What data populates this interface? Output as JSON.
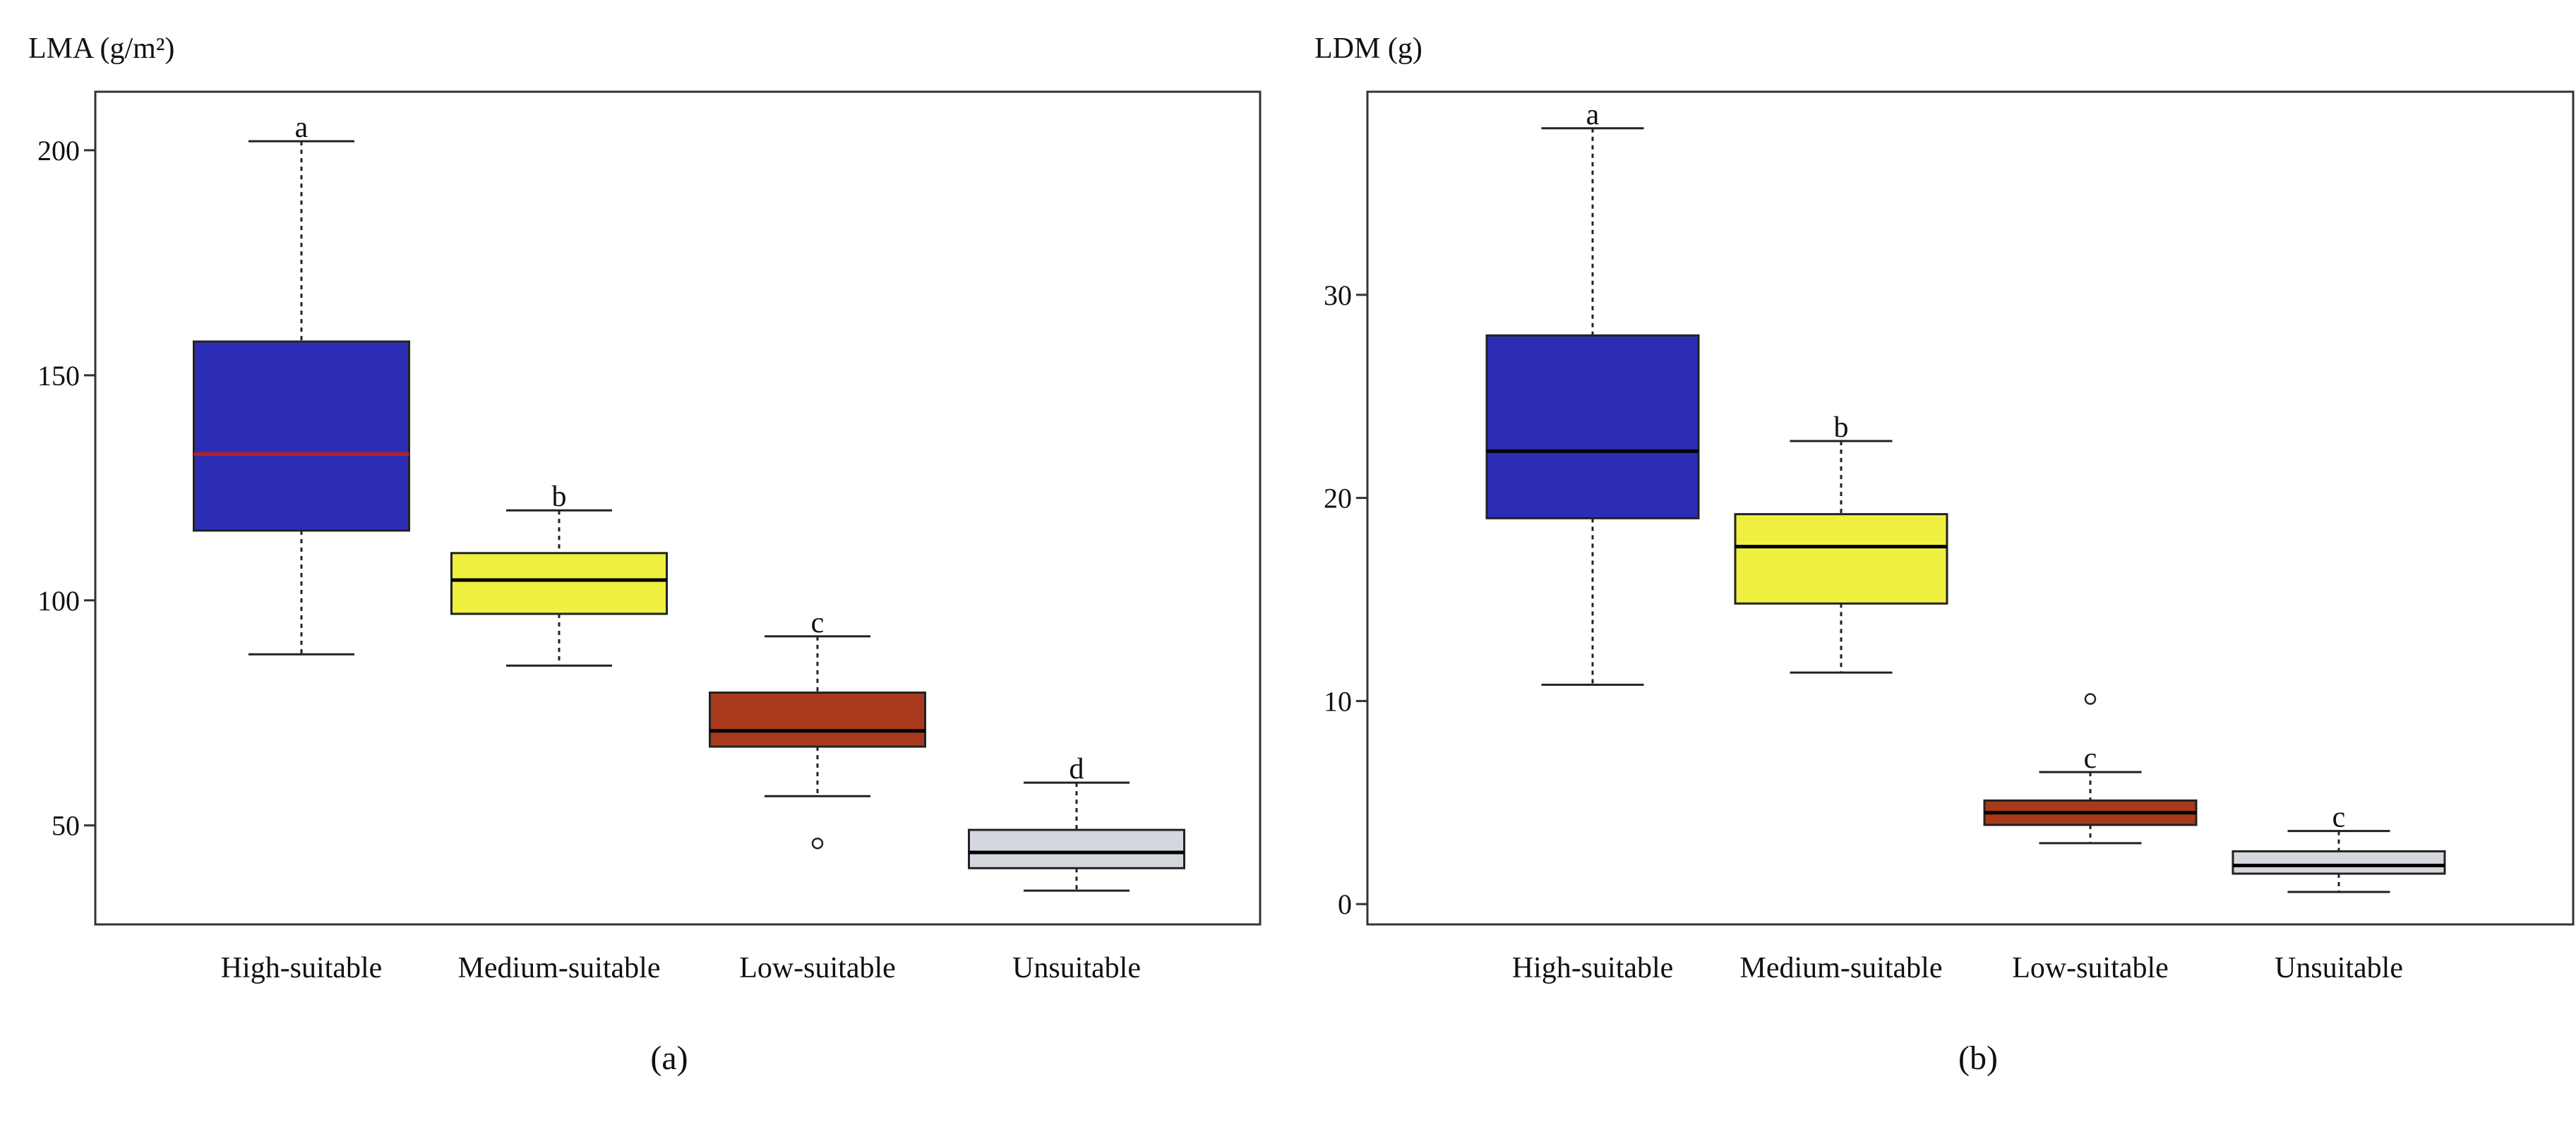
{
  "chart_data": [
    {
      "type": "box",
      "panel_label": "(a)",
      "ylabel": "LMA (g/m²)",
      "ylim": [
        28,
        213
      ],
      "yticks": [
        50,
        100,
        150,
        200
      ],
      "categories": [
        "High-suitable",
        "Medium-suitable",
        "Low-suitable",
        "Unsuitable"
      ],
      "boxes": [
        {
          "name": "High-suitable",
          "whisker_low": 88,
          "q1": 115.5,
          "median": 132.5,
          "q3": 157.5,
          "whisker_high": 202,
          "outliers": [],
          "letter": "a",
          "fill": "#2b2eb4",
          "median_color": "#b22222"
        },
        {
          "name": "Medium-suitable",
          "whisker_low": 85.5,
          "q1": 97,
          "median": 104.5,
          "q3": 110.5,
          "whisker_high": 120,
          "outliers": [],
          "letter": "b",
          "fill": "#f0f040",
          "median_color": "#000000"
        },
        {
          "name": "Low-suitable",
          "whisker_low": 56.5,
          "q1": 67.5,
          "median": 71,
          "q3": 79.5,
          "whisker_high": 92,
          "outliers": [
            46
          ],
          "letter": "c",
          "fill": "#a8391c",
          "median_color": "#000000"
        },
        {
          "name": "Unsuitable",
          "whisker_low": 35.5,
          "q1": 40.5,
          "median": 44,
          "q3": 49,
          "whisker_high": 59.5,
          "outliers": [],
          "letter": "d",
          "fill": "#d4d7de",
          "median_color": "#000000"
        }
      ]
    },
    {
      "type": "box",
      "panel_label": "(b)",
      "ylabel": "LDM (g)",
      "ylim": [
        -1,
        40
      ],
      "yticks": [
        0,
        10,
        20,
        30
      ],
      "categories": [
        "High-suitable",
        "Medium-suitable",
        "Low-suitable",
        "Unsuitable"
      ],
      "boxes": [
        {
          "name": "High-suitable",
          "whisker_low": 10.8,
          "q1": 19,
          "median": 22.3,
          "q3": 28,
          "whisker_high": 38.2,
          "outliers": [],
          "letter": "a",
          "fill": "#2b2eb4",
          "median_color": "#000000"
        },
        {
          "name": "Medium-suitable",
          "whisker_low": 11.4,
          "q1": 14.8,
          "median": 17.6,
          "q3": 19.2,
          "whisker_high": 22.8,
          "outliers": [],
          "letter": "b",
          "fill": "#f0f040",
          "median_color": "#000000"
        },
        {
          "name": "Low-suitable",
          "whisker_low": 3,
          "q1": 3.9,
          "median": 4.5,
          "q3": 5.1,
          "whisker_high": 6.5,
          "outliers": [
            10.1
          ],
          "letter": "c",
          "fill": "#a8391c",
          "median_color": "#000000"
        },
        {
          "name": "Unsuitable",
          "whisker_low": 0.6,
          "q1": 1.5,
          "median": 1.9,
          "q3": 2.6,
          "whisker_high": 3.6,
          "outliers": [],
          "letter": "c",
          "fill": "#d4d7de",
          "median_color": "#000000"
        }
      ]
    }
  ]
}
